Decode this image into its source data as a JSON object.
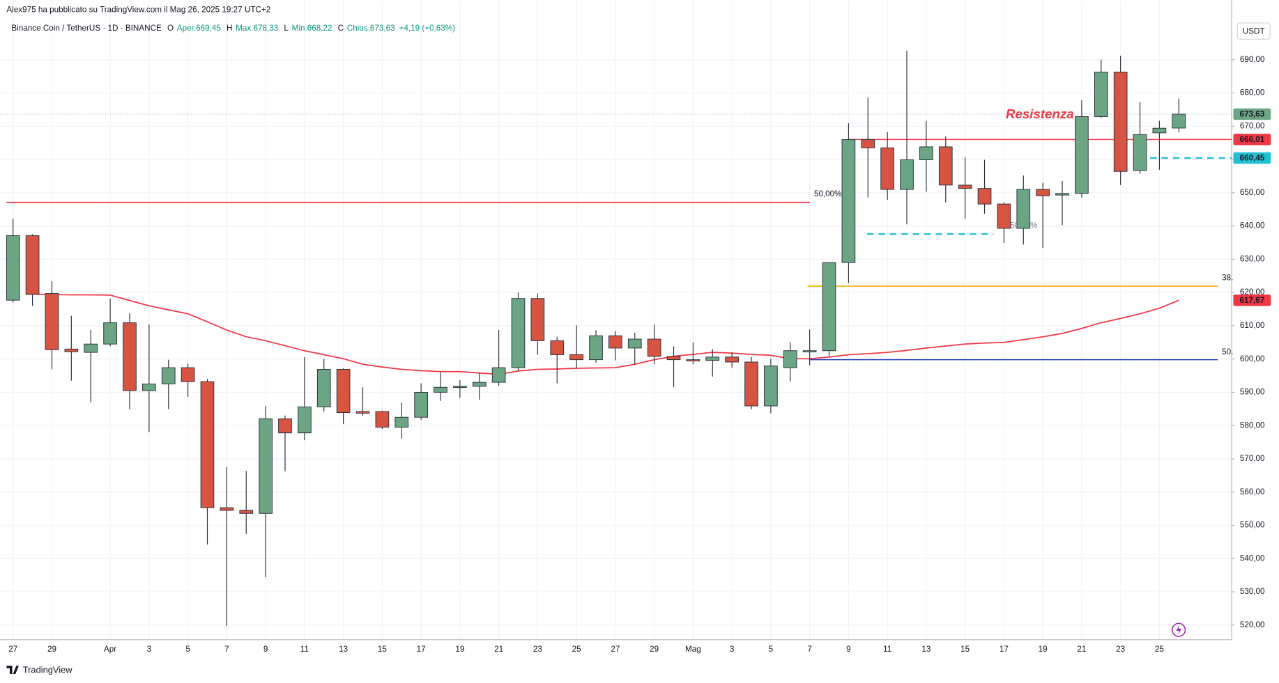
{
  "chart_data": {
    "type": "candlestick",
    "header": "Alex975 ha pubblicato su TradingView.com il Mag 26, 2025 19:27 UTC+2",
    "title": "Binance Coin / TetherUS · 1D · BINANCE",
    "ohlc_legend": [
      {
        "key": "O",
        "text": "Aper.669,45"
      },
      {
        "key": "H",
        "text": "Max.678,33"
      },
      {
        "key": "L",
        "text": "Min.668,22"
      },
      {
        "key": "C",
        "text": "Chius.673,63"
      }
    ],
    "change": "+4,19 (+0,63%)",
    "currency": "USDT",
    "footer": "TradingView",
    "annotation": "Resistenza",
    "up_color": "#6ba583",
    "down_color": "#d75442",
    "categories": [
      "27",
      null,
      "29",
      null,
      null,
      "Apr",
      null,
      "3",
      null,
      "5",
      null,
      "7",
      null,
      "9",
      null,
      "11",
      null,
      "13",
      null,
      "15",
      null,
      "17",
      null,
      "19",
      null,
      "21",
      null,
      "23",
      null,
      "25",
      null,
      "27",
      null,
      "29",
      null,
      "Mag",
      null,
      "3",
      null,
      "5",
      null,
      "7",
      null,
      "9",
      null,
      "11",
      null,
      "13",
      null,
      "15",
      null,
      "17",
      null,
      "19",
      null,
      "21",
      null,
      "23",
      null,
      "25",
      null
    ],
    "open": [
      617.7,
      637.1,
      619.7,
      603,
      602,
      604.5,
      610.9,
      590.5,
      592.5,
      597.4,
      593.2,
      555.3,
      554.5,
      553.6,
      582,
      577.8,
      585.6,
      596.9,
      584.2,
      584.2,
      579.5,
      582.5,
      590,
      591.5,
      591.8,
      593,
      597.4,
      618.2,
      605.5,
      601.3,
      599.8,
      607,
      603.3,
      606,
      600.8,
      599.8,
      599.6,
      600.6,
      599.1,
      585.9,
      597.4,
      602.3,
      602.5,
      629,
      666,
      663.5,
      651,
      659.9,
      663.8,
      652.3,
      651.3,
      646.6,
      639.3,
      651,
      649.3,
      649.8,
      672.9,
      686.3,
      656.7,
      668,
      669.45
    ],
    "high": [
      642.2,
      637.5,
      623.4,
      613,
      608.7,
      618.2,
      613.8,
      610.4,
      599.8,
      598.6,
      594,
      567.5,
      566.3,
      585.9,
      583,
      600.6,
      600.1,
      597.2,
      591.5,
      584.5,
      586.9,
      592.7,
      596,
      593.7,
      595.7,
      608.7,
      620,
      619.7,
      606.7,
      610.1,
      608.7,
      608.4,
      607.9,
      610.4,
      603.8,
      605,
      603,
      602,
      600.6,
      600.1,
      605,
      608.9,
      629.2,
      670.9,
      678.7,
      668.2,
      692.7,
      671.6,
      667,
      660.6,
      659.9,
      647.1,
      655.2,
      653,
      653.5,
      677.8,
      690,
      691.2,
      677.3,
      671.6,
      678.33
    ],
    "low": [
      617,
      616,
      596.9,
      593.5,
      587,
      603.8,
      584.9,
      578,
      584.9,
      588.6,
      544.2,
      519.8,
      547.4,
      534.4,
      566.3,
      575.6,
      584.2,
      580.5,
      583,
      579,
      576.1,
      581.7,
      587.4,
      588.3,
      587.8,
      592,
      596.4,
      601.3,
      592.7,
      597.2,
      598.9,
      599.6,
      598.4,
      598.4,
      591.5,
      598.4,
      594.7,
      597.4,
      584.9,
      583.7,
      593.2,
      598.1,
      600.8,
      622.9,
      648.6,
      647.9,
      640.5,
      650.3,
      647.1,
      642.2,
      643.7,
      634.9,
      634.4,
      633.4,
      640.3,
      648.6,
      672.5,
      652.3,
      655.7,
      656.9,
      668.22
    ],
    "close": [
      637.1,
      619.4,
      602.8,
      602.2,
      604.5,
      610.9,
      590.5,
      592.5,
      597.4,
      593.2,
      555.3,
      554.5,
      553.6,
      582,
      577.8,
      585.6,
      596.9,
      583.9,
      583.7,
      579.5,
      582.5,
      590,
      591.5,
      591.8,
      593,
      597.4,
      618.2,
      605.5,
      601.3,
      599.8,
      607,
      603.3,
      606,
      600.8,
      599.8,
      599.6,
      600.6,
      599.1,
      585.9,
      597.9,
      602.5,
      602.5,
      629,
      666,
      663.5,
      651,
      659.9,
      663.8,
      652.3,
      651.3,
      646.6,
      639.3,
      651,
      649.1,
      649.8,
      672.9,
      686.3,
      656.4,
      667.5,
      669.4,
      673.63
    ],
    "moving_average": {
      "color": "#f23645",
      "values": [
        null,
        619.5,
        619.4,
        619.3,
        619.3,
        619.2,
        617.6,
        616,
        614.8,
        613.6,
        611.2,
        608.7,
        606.7,
        605.5,
        604,
        602.5,
        601.3,
        600.1,
        598.4,
        597.6,
        596.9,
        596.5,
        596.2,
        596.2,
        595.8,
        595.4,
        596.4,
        596.9,
        597,
        597.2,
        597.3,
        597.4,
        598.4,
        599.8,
        600.8,
        601.4,
        602,
        601.8,
        601.4,
        601.1,
        600.1,
        600.1,
        600.6,
        601.3,
        601.6,
        602,
        602.6,
        603.3,
        603.9,
        604.5,
        604.8,
        605,
        605.8,
        606.7,
        607.7,
        609.2,
        610.9,
        612.2,
        613.6,
        615.3,
        617.67
      ]
    },
    "ylim": [
      515.6,
      701.8
    ],
    "yticks": [
      {
        "value": 520,
        "label": "520,00"
      },
      {
        "value": 530,
        "label": "530,00"
      },
      {
        "value": 540,
        "label": "540,00"
      },
      {
        "value": 550,
        "label": "550,00"
      },
      {
        "value": 560,
        "label": "560,00"
      },
      {
        "value": 570,
        "label": "570,00"
      },
      {
        "value": 580,
        "label": "580,00"
      },
      {
        "value": 590,
        "label": "590,00"
      },
      {
        "value": 600,
        "label": "600,00"
      },
      {
        "value": 610,
        "label": "610,00"
      },
      {
        "value": 620,
        "label": "620,00"
      },
      {
        "value": 630,
        "label": "630,00"
      },
      {
        "value": 640,
        "label": "640,00"
      },
      {
        "value": 650,
        "label": "650,00"
      },
      {
        "value": 660,
        "label": "660,00"
      },
      {
        "value": 670,
        "label": "670,00"
      },
      {
        "value": 680,
        "label": "680,00"
      },
      {
        "value": 690,
        "label": "690,00"
      }
    ],
    "grid": true,
    "horizontal_lines": [
      {
        "value": 647.1,
        "color": "#f23645",
        "label": "50,00%"
      },
      {
        "value": 621.9,
        "color": "#f5b400",
        "label": "38."
      },
      {
        "value": 599.8,
        "color": "#1e3fbf",
        "label": "50."
      },
      {
        "value": 666.01,
        "color": "#f23645"
      },
      {
        "value": 660.45,
        "color": "#22c0d4",
        "dashed": true
      },
      {
        "value": 637.6,
        "color": "#22c0d4",
        "dashed": true,
        "label": "50,00%"
      },
      {
        "value": 673.63,
        "color": "#9aa5b1",
        "dotted": true
      }
    ],
    "price_labels": [
      {
        "value": 673.63,
        "label": "673,63",
        "color": "#6ba583",
        "text_color": "#ffffff"
      },
      {
        "value": 666.01,
        "label": "666,01",
        "color": "#f23645",
        "text_color": "#ffffff"
      },
      {
        "value": 660.45,
        "label": "660,45",
        "color": "#22c0d4",
        "text_color": "#131722"
      },
      {
        "value": 617.67,
        "label": "617,67",
        "color": "#f23645",
        "text_color": "#ffffff"
      }
    ]
  }
}
